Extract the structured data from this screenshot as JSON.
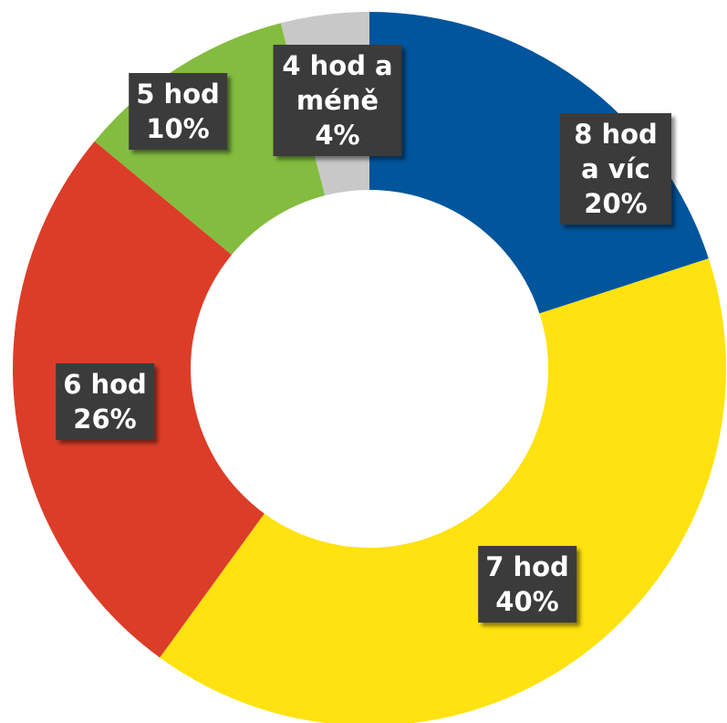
{
  "chart_data": {
    "type": "donut",
    "categories": [
      "8 hod a víc",
      "7 hod",
      "6 hod",
      "5 hod",
      "4 hod a méně"
    ],
    "values": [
      20,
      40,
      26,
      10,
      4
    ],
    "value_labels": [
      "20%",
      "40%",
      "26%",
      "10%",
      "4%"
    ],
    "colors": [
      "#00559c",
      "#ffe20f",
      "#dc3d28",
      "#83bc3f",
      "#c8c8c8"
    ]
  }
}
